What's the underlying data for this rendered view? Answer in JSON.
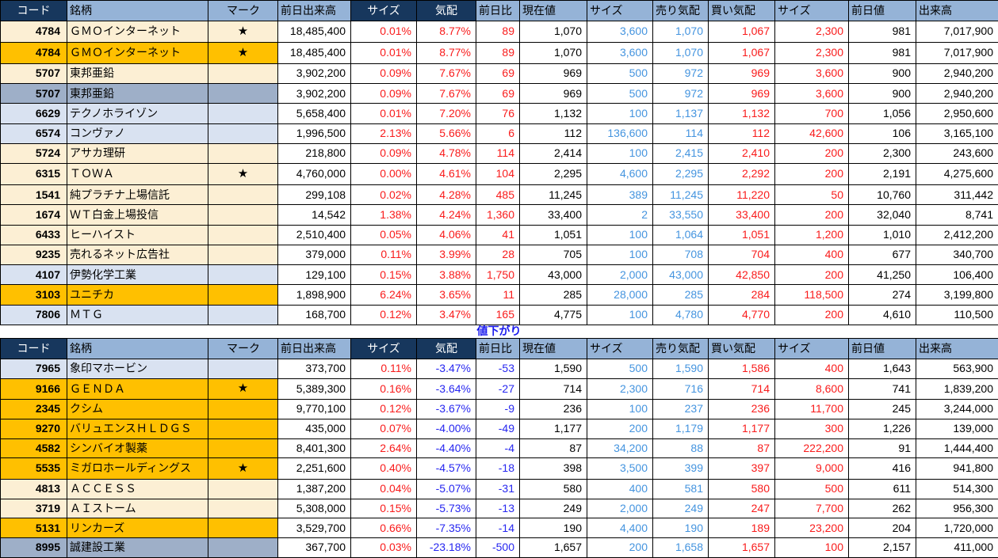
{
  "colors": {
    "header_navy": "#17375D",
    "header_light": "#95B3D7",
    "row_cream": "#FCEFD4",
    "row_orange": "#FFC000",
    "row_blue": "#D9E2F1",
    "row_gray": "#9EAFC8",
    "text_red": "#F91B1B",
    "text_blue_num": "#4494DF",
    "text_blue_neg": "#2626F0",
    "divider_blue": "#1A1AEE"
  },
  "columns": [
    {
      "key": "code",
      "label": "コード"
    },
    {
      "key": "name",
      "label": "銘柄"
    },
    {
      "key": "mark",
      "label": "マーク"
    },
    {
      "key": "prev_volume",
      "label": "前日出来高"
    },
    {
      "key": "size1",
      "label": "サイズ"
    },
    {
      "key": "quote",
      "label": "気配"
    },
    {
      "key": "change",
      "label": "前日比"
    },
    {
      "key": "current",
      "label": "現在値"
    },
    {
      "key": "size2",
      "label": "サイズ"
    },
    {
      "key": "ask",
      "label": "売り気配"
    },
    {
      "key": "bid",
      "label": "買い気配"
    },
    {
      "key": "size3",
      "label": "サイズ"
    },
    {
      "key": "prev_price",
      "label": "前日値"
    },
    {
      "key": "volume",
      "label": "出来高"
    }
  ],
  "divider": {
    "label": "値下がり"
  },
  "gainers": {
    "rows": [
      {
        "tone": "cream",
        "cells": {
          "code": "4784",
          "name": "ＧＭＯインターネット",
          "mark": "★",
          "prev_volume": "18,485,400",
          "size1": "0.01%",
          "quote": "8.77%",
          "change": "89",
          "current": "1,070",
          "size2": "3,600",
          "ask": "1,070",
          "bid": "1,067",
          "size3": "2,300",
          "prev_price": "981",
          "volume": "7,017,900"
        }
      },
      {
        "tone": "orange",
        "cells": {
          "code": "4784",
          "name": "ＧＭＯインターネット",
          "mark": "★",
          "prev_volume": "18,485,400",
          "size1": "0.01%",
          "quote": "8.77%",
          "change": "89",
          "current": "1,070",
          "size2": "3,600",
          "ask": "1,070",
          "bid": "1,067",
          "size3": "2,300",
          "prev_price": "981",
          "volume": "7,017,900"
        }
      },
      {
        "tone": "cream",
        "cells": {
          "code": "5707",
          "name": "東邦亜鉛",
          "mark": "",
          "prev_volume": "3,902,200",
          "size1": "0.09%",
          "quote": "7.67%",
          "change": "69",
          "current": "969",
          "size2": "500",
          "ask": "972",
          "bid": "969",
          "size3": "3,600",
          "prev_price": "900",
          "volume": "2,940,200"
        }
      },
      {
        "tone": "gray",
        "cells": {
          "code": "5707",
          "name": "東邦亜鉛",
          "mark": "",
          "prev_volume": "3,902,200",
          "size1": "0.09%",
          "quote": "7.67%",
          "change": "69",
          "current": "969",
          "size2": "500",
          "ask": "972",
          "bid": "969",
          "size3": "3,600",
          "prev_price": "900",
          "volume": "2,940,200"
        }
      },
      {
        "tone": "blue",
        "cells": {
          "code": "6629",
          "name": "テクノホライゾン",
          "mark": "",
          "prev_volume": "5,658,400",
          "size1": "0.01%",
          "quote": "7.20%",
          "change": "76",
          "current": "1,132",
          "size2": "100",
          "ask": "1,137",
          "bid": "1,132",
          "size3": "700",
          "prev_price": "1,056",
          "volume": "2,950,600"
        }
      },
      {
        "tone": "blue",
        "cells": {
          "code": "6574",
          "name": "コンヴァノ",
          "mark": "",
          "prev_volume": "1,996,500",
          "size1": "2.13%",
          "quote": "5.66%",
          "change": "6",
          "current": "112",
          "size2": "136,600",
          "ask": "114",
          "bid": "112",
          "size3": "42,600",
          "prev_price": "106",
          "volume": "3,165,100"
        }
      },
      {
        "tone": "cream",
        "cells": {
          "code": "5724",
          "name": "アサカ理研",
          "mark": "",
          "prev_volume": "218,800",
          "size1": "0.09%",
          "quote": "4.78%",
          "change": "114",
          "current": "2,414",
          "size2": "100",
          "ask": "2,415",
          "bid": "2,410",
          "size3": "200",
          "prev_price": "2,300",
          "volume": "243,600"
        }
      },
      {
        "tone": "cream",
        "cells": {
          "code": "6315",
          "name": "ＴＯＷＡ",
          "mark": "★",
          "prev_volume": "4,760,000",
          "size1": "0.00%",
          "quote": "4.61%",
          "change": "104",
          "current": "2,295",
          "size2": "4,600",
          "ask": "2,295",
          "bid": "2,292",
          "size3": "200",
          "prev_price": "2,191",
          "volume": "4,275,600"
        }
      },
      {
        "tone": "cream",
        "cells": {
          "code": "1541",
          "name": "純プラチナ上場信託",
          "mark": "",
          "prev_volume": "299,108",
          "size1": "0.02%",
          "quote": "4.28%",
          "change": "485",
          "current": "11,245",
          "size2": "389",
          "ask": "11,245",
          "bid": "11,220",
          "size3": "50",
          "prev_price": "10,760",
          "volume": "311,442"
        }
      },
      {
        "tone": "cream",
        "cells": {
          "code": "1674",
          "name": "ＷＴ白金上場投信",
          "mark": "",
          "prev_volume": "14,542",
          "size1": "1.38%",
          "quote": "4.24%",
          "change": "1,360",
          "current": "33,400",
          "size2": "2",
          "ask": "33,550",
          "bid": "33,400",
          "size3": "200",
          "prev_price": "32,040",
          "volume": "8,741"
        }
      },
      {
        "tone": "cream",
        "cells": {
          "code": "6433",
          "name": "ヒーハイスト",
          "mark": "",
          "prev_volume": "2,510,400",
          "size1": "0.05%",
          "quote": "4.06%",
          "change": "41",
          "current": "1,051",
          "size2": "100",
          "ask": "1,064",
          "bid": "1,051",
          "size3": "1,200",
          "prev_price": "1,010",
          "volume": "2,412,200"
        }
      },
      {
        "tone": "cream",
        "cells": {
          "code": "9235",
          "name": "売れるネット広告社",
          "mark": "",
          "prev_volume": "379,000",
          "size1": "0.11%",
          "quote": "3.99%",
          "change": "28",
          "current": "705",
          "size2": "100",
          "ask": "708",
          "bid": "704",
          "size3": "400",
          "prev_price": "677",
          "volume": "340,700"
        }
      },
      {
        "tone": "blue",
        "cells": {
          "code": "4107",
          "name": "伊勢化学工業",
          "mark": "",
          "prev_volume": "129,100",
          "size1": "0.15%",
          "quote": "3.88%",
          "change": "1,750",
          "current": "43,000",
          "size2": "2,000",
          "ask": "43,000",
          "bid": "42,850",
          "size3": "200",
          "prev_price": "41,250",
          "volume": "106,400"
        }
      },
      {
        "tone": "orange",
        "cells": {
          "code": "3103",
          "name": "ユニチカ",
          "mark": "",
          "prev_volume": "1,898,900",
          "size1": "6.24%",
          "quote": "3.65%",
          "change": "11",
          "current": "285",
          "size2": "28,000",
          "ask": "285",
          "bid": "284",
          "size3": "118,500",
          "prev_price": "274",
          "volume": "3,199,800"
        }
      },
      {
        "tone": "blue",
        "cells": {
          "code": "7806",
          "name": "ＭＴＧ",
          "mark": "",
          "prev_volume": "168,700",
          "size1": "0.12%",
          "quote": "3.47%",
          "change": "165",
          "current": "4,775",
          "size2": "100",
          "ask": "4,780",
          "bid": "4,770",
          "size3": "200",
          "prev_price": "4,610",
          "volume": "110,500"
        }
      }
    ]
  },
  "decliners": {
    "rows": [
      {
        "tone": "blue",
        "cells": {
          "code": "7965",
          "name": "象印マホービン",
          "mark": "",
          "prev_volume": "373,700",
          "size1": "0.11%",
          "quote": "-3.47%",
          "change": "-53",
          "current": "1,590",
          "size2": "500",
          "ask": "1,590",
          "bid": "1,586",
          "size3": "400",
          "prev_price": "1,643",
          "volume": "563,900"
        }
      },
      {
        "tone": "orange",
        "cells": {
          "code": "9166",
          "name": "ＧＥＮＤＡ",
          "mark": "★",
          "prev_volume": "5,389,300",
          "size1": "0.16%",
          "quote": "-3.64%",
          "change": "-27",
          "current": "714",
          "size2": "2,300",
          "ask": "716",
          "bid": "714",
          "size3": "8,600",
          "prev_price": "741",
          "volume": "1,839,200"
        }
      },
      {
        "tone": "orange",
        "cells": {
          "code": "2345",
          "name": "クシム",
          "mark": "",
          "prev_volume": "9,770,100",
          "size1": "0.12%",
          "quote": "-3.67%",
          "change": "-9",
          "current": "236",
          "size2": "100",
          "ask": "237",
          "bid": "236",
          "size3": "11,700",
          "prev_price": "245",
          "volume": "3,244,000"
        }
      },
      {
        "tone": "orange",
        "cells": {
          "code": "9270",
          "name": "バリュエンスＨＬＤＧＳ",
          "mark": "",
          "prev_volume": "435,000",
          "size1": "0.07%",
          "quote": "-4.00%",
          "change": "-49",
          "current": "1,177",
          "size2": "200",
          "ask": "1,179",
          "bid": "1,177",
          "size3": "300",
          "prev_price": "1,226",
          "volume": "139,000"
        }
      },
      {
        "tone": "orange",
        "cells": {
          "code": "4582",
          "name": "シンバイオ製薬",
          "mark": "",
          "prev_volume": "8,401,300",
          "size1": "2.64%",
          "quote": "-4.40%",
          "change": "-4",
          "current": "87",
          "size2": "34,200",
          "ask": "88",
          "bid": "87",
          "size3": "222,200",
          "prev_price": "91",
          "volume": "1,444,400"
        }
      },
      {
        "tone": "orange",
        "cells": {
          "code": "5535",
          "name": "ミガロホールディングス",
          "mark": "★",
          "prev_volume": "2,251,600",
          "size1": "0.40%",
          "quote": "-4.57%",
          "change": "-18",
          "current": "398",
          "size2": "3,500",
          "ask": "399",
          "bid": "397",
          "size3": "9,000",
          "prev_price": "416",
          "volume": "941,800"
        }
      },
      {
        "tone": "cream",
        "cells": {
          "code": "4813",
          "name": "ＡＣＣＥＳＳ",
          "mark": "",
          "prev_volume": "1,387,200",
          "size1": "0.04%",
          "quote": "-5.07%",
          "change": "-31",
          "current": "580",
          "size2": "400",
          "ask": "581",
          "bid": "580",
          "size3": "500",
          "prev_price": "611",
          "volume": "514,300"
        }
      },
      {
        "tone": "cream",
        "cells": {
          "code": "3719",
          "name": "ＡＩストーム",
          "mark": "",
          "prev_volume": "5,308,000",
          "size1": "0.15%",
          "quote": "-5.73%",
          "change": "-13",
          "current": "249",
          "size2": "2,000",
          "ask": "249",
          "bid": "247",
          "size3": "7,700",
          "prev_price": "262",
          "volume": "956,300"
        }
      },
      {
        "tone": "orange",
        "cells": {
          "code": "5131",
          "name": "リンカーズ",
          "mark": "",
          "prev_volume": "3,529,700",
          "size1": "0.66%",
          "quote": "-7.35%",
          "change": "-14",
          "current": "190",
          "size2": "4,400",
          "ask": "190",
          "bid": "189",
          "size3": "23,200",
          "prev_price": "204",
          "volume": "1,720,000"
        }
      },
      {
        "tone": "gray",
        "cells": {
          "code": "8995",
          "name": "誠建設工業",
          "mark": "",
          "prev_volume": "367,700",
          "size1": "0.03%",
          "quote": "-23.18%",
          "change": "-500",
          "current": "1,657",
          "size2": "200",
          "ask": "1,658",
          "bid": "1,657",
          "size3": "100",
          "prev_price": "2,157",
          "volume": "411,000"
        }
      }
    ]
  }
}
